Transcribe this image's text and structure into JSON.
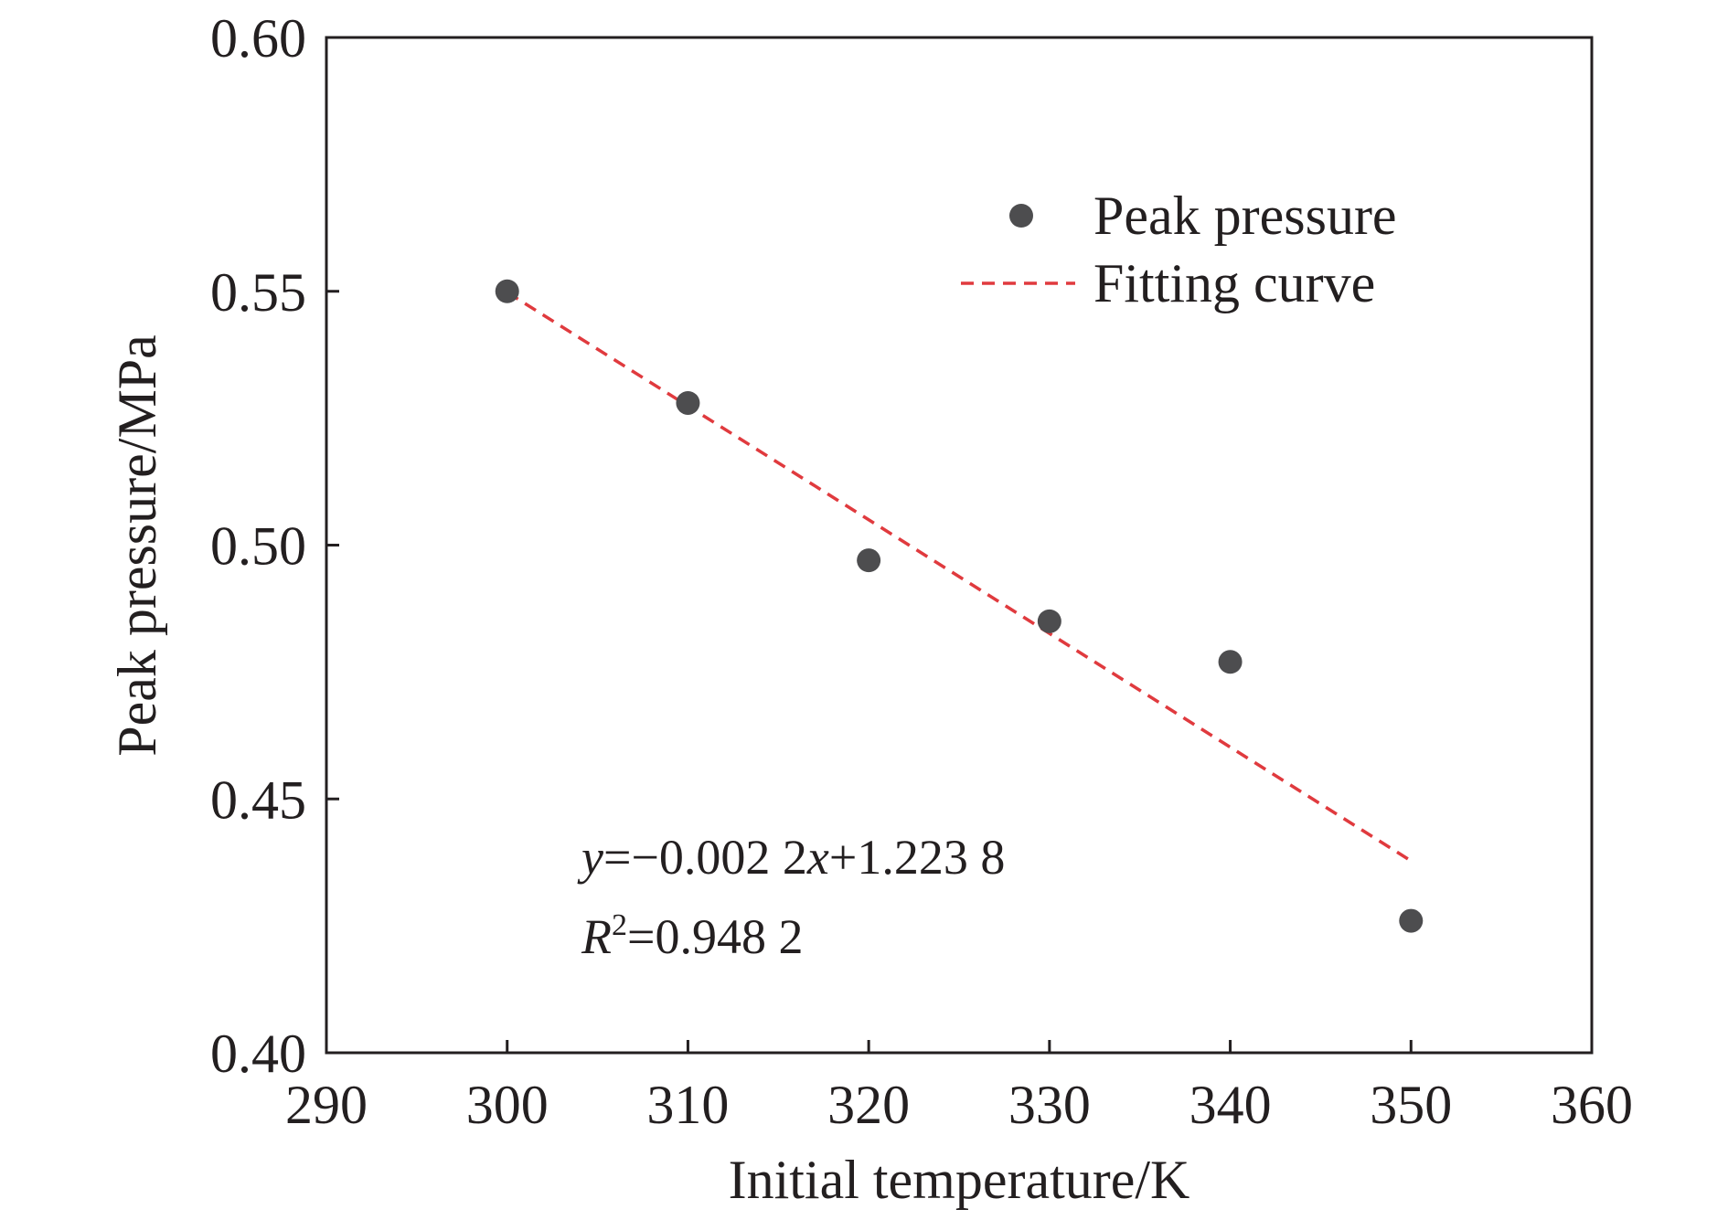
{
  "chart_data": {
    "type": "scatter",
    "title": "",
    "xlabel": "Initial temperature/K",
    "ylabel": "Peak pressure/MPa",
    "xlim": [
      290,
      360
    ],
    "ylim": [
      0.4,
      0.6
    ],
    "x_ticks": [
      "290",
      "300",
      "310",
      "320",
      "330",
      "340",
      "350",
      "360"
    ],
    "y_ticks": [
      "0.40",
      "0.45",
      "0.50",
      "0.55",
      "0.60"
    ],
    "grid": false,
    "legend_position": "top-right",
    "series": [
      {
        "name": "Peak pressure",
        "kind": "scatter",
        "color": "#4d4d4f",
        "x": [
          300,
          310,
          320,
          330,
          340,
          350
        ],
        "y": [
          0.55,
          0.528,
          0.497,
          0.485,
          0.477,
          0.426
        ]
      },
      {
        "name": "Fitting curve",
        "kind": "line",
        "style": "dashed",
        "color": "#e03a3e",
        "x": [
          300,
          350
        ],
        "y": [
          0.5498,
          0.4378
        ]
      }
    ],
    "annotations": {
      "equation": {
        "y_var": "y",
        "eq1": "=−0.002 2",
        "x_var": "x",
        "eq2": "+1.223 8"
      },
      "r_squared": {
        "r_var": "R",
        "sup": "2",
        "value": "=0.948 2"
      }
    }
  }
}
